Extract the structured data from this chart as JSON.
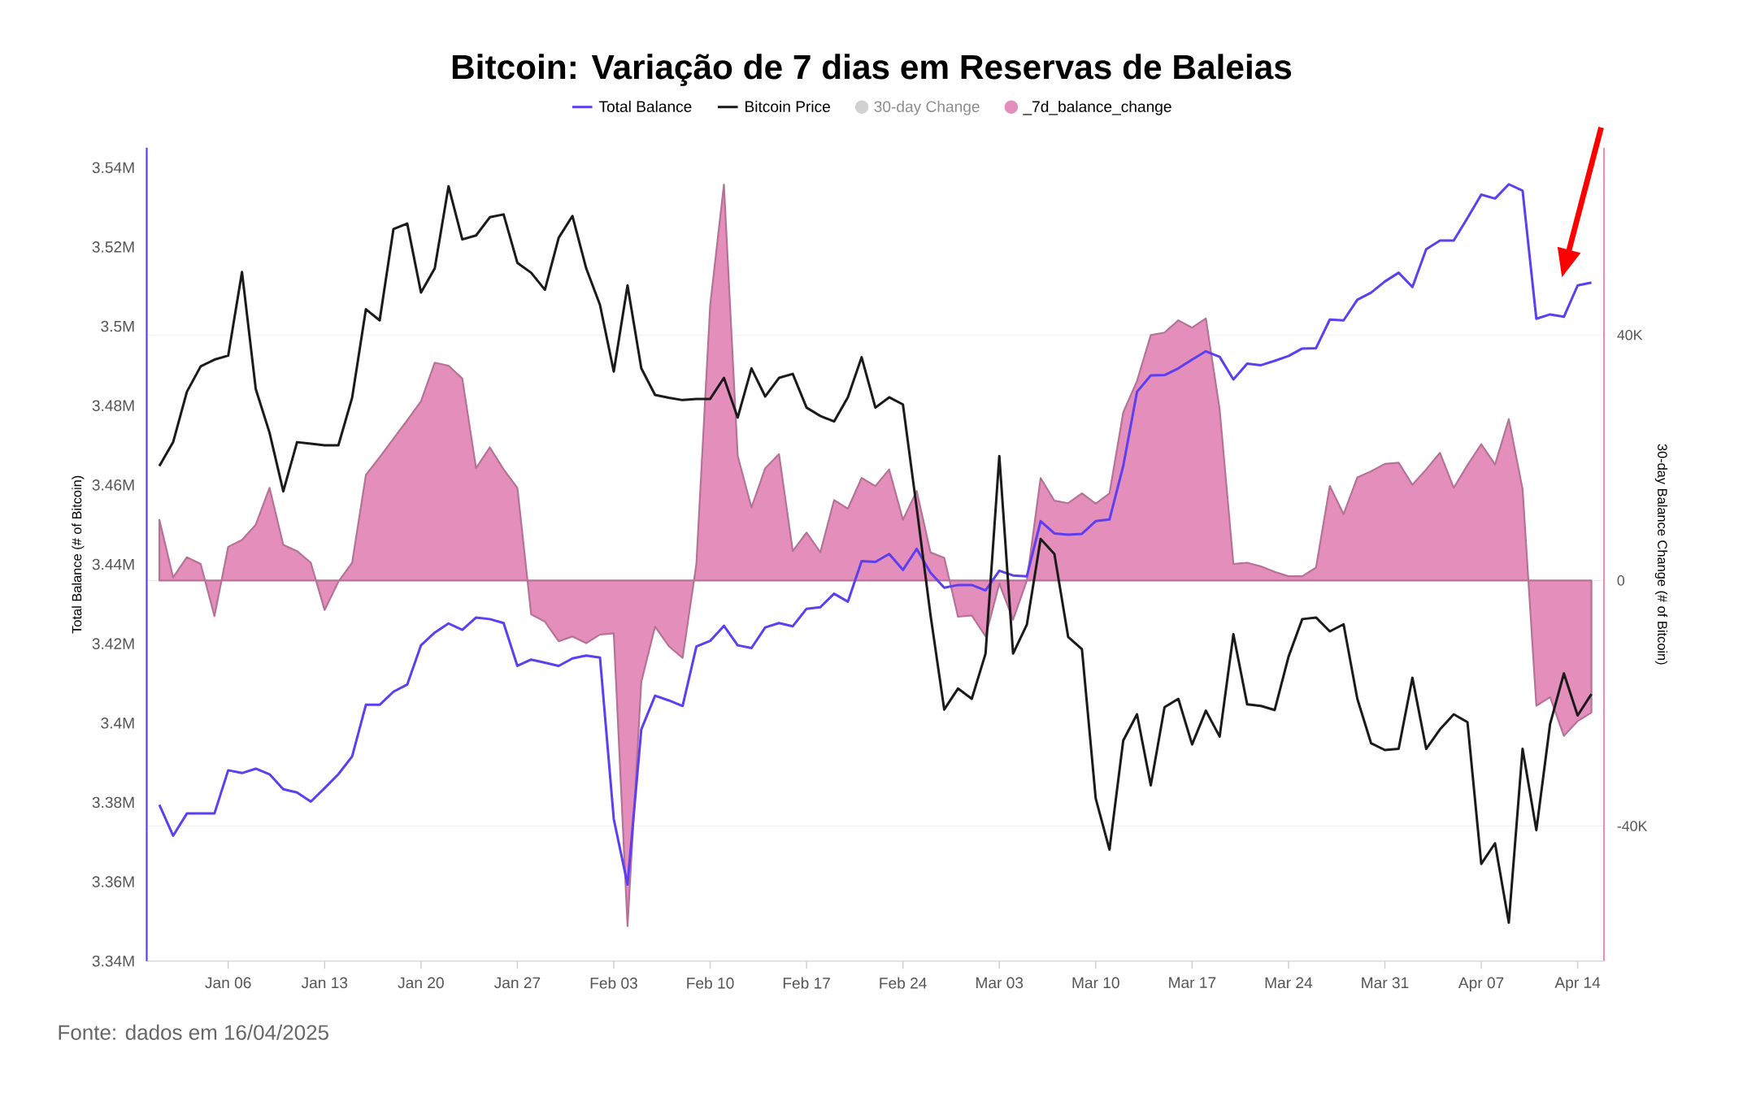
{
  "chart_data": {
    "type": "line",
    "title": "Bitcoin: Variação de 7 dias em Reservas de Baleias",
    "ylabel": "Total Balance (# of Bitcoin)",
    "y2label": "30-day Balance Change (# of Bitcoin)",
    "annotations": [
      "30-day Change",
      "Fonte: dados em 16/04/2025"
    ],
    "x": [
      "2025-01-01",
      "2025-01-02",
      "2025-01-03",
      "2025-01-04",
      "2025-01-05",
      "2025-01-06",
      "2025-01-07",
      "2025-01-08",
      "2025-01-09",
      "2025-01-10",
      "2025-01-11",
      "2025-01-12",
      "2025-01-13",
      "2025-01-14",
      "2025-01-15",
      "2025-01-16",
      "2025-01-17",
      "2025-01-18",
      "2025-01-19",
      "2025-01-20",
      "2025-01-21",
      "2025-01-22",
      "2025-01-23",
      "2025-01-24",
      "2025-01-25",
      "2025-01-26",
      "2025-01-27",
      "2025-01-28",
      "2025-01-29",
      "2025-01-30",
      "2025-01-31",
      "2025-02-01",
      "2025-02-02",
      "2025-02-03",
      "2025-02-04",
      "2025-02-05",
      "2025-02-06",
      "2025-02-07",
      "2025-02-08",
      "2025-02-09",
      "2025-02-10",
      "2025-02-11",
      "2025-02-12",
      "2025-02-13",
      "2025-02-14",
      "2025-02-15",
      "2025-02-16",
      "2025-02-17",
      "2025-02-18",
      "2025-02-19",
      "2025-02-20",
      "2025-02-21",
      "2025-02-22",
      "2025-02-23",
      "2025-02-24",
      "2025-02-25",
      "2025-02-26",
      "2025-02-27",
      "2025-02-28",
      "2025-03-01",
      "2025-03-02",
      "2025-03-03",
      "2025-03-04",
      "2025-03-05",
      "2025-03-06",
      "2025-03-07",
      "2025-03-08",
      "2025-03-09",
      "2025-03-10",
      "2025-03-11",
      "2025-03-12",
      "2025-03-13",
      "2025-03-14",
      "2025-03-15",
      "2025-03-16",
      "2025-03-17",
      "2025-03-18",
      "2025-03-19",
      "2025-03-20",
      "2025-03-21",
      "2025-03-22",
      "2025-03-23",
      "2025-03-24",
      "2025-03-25",
      "2025-03-26",
      "2025-03-27",
      "2025-03-28",
      "2025-03-29",
      "2025-03-30",
      "2025-03-31",
      "2025-04-01",
      "2025-04-02",
      "2025-04-03",
      "2025-04-04",
      "2025-04-05",
      "2025-04-06",
      "2025-04-07",
      "2025-04-08",
      "2025-04-09",
      "2025-04-10",
      "2025-04-11",
      "2025-04-12",
      "2025-04-13",
      "2025-04-14",
      "2025-04-15"
    ],
    "series": [
      {
        "name": "_7d_balance_change",
        "type": "area",
        "axis": "y2",
        "color": "#e48fbb",
        "values": [
          9900,
          500,
          3800,
          2700,
          -5800,
          5500,
          6600,
          9100,
          15100,
          5800,
          4800,
          2900,
          -4800,
          -200,
          2900,
          17200,
          20100,
          23100,
          26100,
          29200,
          35500,
          35000,
          32900,
          18300,
          21700,
          18100,
          15100,
          -5500,
          -6700,
          -9900,
          -9100,
          -10200,
          -8800,
          -8600,
          -56300,
          -16500,
          -7500,
          -10700,
          -12600,
          2700,
          44800,
          64500,
          20300,
          11900,
          18300,
          20600,
          4800,
          7800,
          4600,
          13100,
          11700,
          16700,
          15400,
          18100,
          9900,
          14600,
          4600,
          3700,
          -5900,
          -5700,
          -9100,
          -500,
          -6400,
          0,
          16700,
          13000,
          12600,
          14200,
          12500,
          14200,
          27400,
          32500,
          40000,
          40400,
          42400,
          41200,
          42700,
          27900,
          2700,
          2900,
          2300,
          1400,
          700,
          700,
          2100,
          15400,
          10800,
          16800,
          17800,
          19000,
          19200,
          15600,
          18100,
          20800,
          15100,
          18800,
          22200,
          18900,
          26300,
          14900,
          -20400,
          -19000,
          -25300,
          -22900,
          -21500
        ]
      },
      {
        "name": "Total Balance",
        "color": "#5b3ff0",
        "values": [
          3379400,
          3371600,
          3377200,
          3377200,
          3377200,
          3388100,
          3387400,
          3388500,
          3387100,
          3383300,
          3382500,
          3380200,
          3383600,
          3387100,
          3391600,
          3404600,
          3404600,
          3407900,
          3409700,
          3419600,
          3422800,
          3425100,
          3423500,
          3426600,
          3426200,
          3425200,
          3414400,
          3416000,
          3415200,
          3414400,
          3416300,
          3417000,
          3416500,
          3375800,
          3359300,
          3398400,
          3406900,
          3405700,
          3404300,
          3419300,
          3420700,
          3424500,
          3419600,
          3418900,
          3424100,
          3425200,
          3424400,
          3428800,
          3429200,
          3432600,
          3430600,
          3440800,
          3440600,
          3442600,
          3438600,
          3443900,
          3437900,
          3434100,
          3434800,
          3434800,
          3433400,
          3438400,
          3437200,
          3437000,
          3450900,
          3447800,
          3447500,
          3447700,
          3450900,
          3451300,
          3464800,
          3483500,
          3487600,
          3487700,
          3489400,
          3491600,
          3493700,
          3492300,
          3486600,
          3490600,
          3490200,
          3491300,
          3492500,
          3494400,
          3494500,
          3501700,
          3501500,
          3506700,
          3508500,
          3511300,
          3513500,
          3509900,
          3519400,
          3521600,
          3521600,
          3527300,
          3533200,
          3532200,
          3535800,
          3534200,
          3501900,
          3503000,
          3502400,
          3510300,
          3511000
        ]
      },
      {
        "name": "Bitcoin Price",
        "color": "#1a1a1a",
        "values": [
          3464800,
          3470800,
          3483500,
          3489900,
          3491600,
          3492600,
          3513700,
          3484200,
          3473200,
          3458400,
          3470800,
          3470400,
          3470000,
          3470000,
          3482000,
          3504300,
          3501500,
          3524500,
          3525900,
          3508500,
          3514600,
          3535300,
          3521900,
          3522900,
          3527500,
          3528200,
          3516000,
          3513500,
          3509200,
          3522300,
          3527800,
          3514600,
          3505400,
          3488600,
          3510300,
          3489400,
          3482700,
          3482000,
          3481400,
          3481700,
          3481700,
          3487000,
          3477000,
          3489400,
          3482300,
          3487000,
          3488000,
          3479500,
          3477400,
          3476000,
          3482100,
          3492200,
          3479500,
          3482100,
          3480300,
          3454200,
          3427300,
          3403400,
          3408700,
          3406100,
          3417500,
          3467300,
          3417500,
          3424800,
          3446400,
          3442600,
          3421700,
          3418600,
          3381000,
          3368100,
          3395600,
          3402200,
          3384300,
          3404000,
          3406100,
          3394600,
          3403100,
          3396600,
          3422400,
          3404700,
          3404300,
          3403300,
          3416700,
          3426200,
          3426600,
          3423100,
          3424900,
          3406100,
          3394900,
          3393200,
          3393500,
          3411400,
          3393500,
          3398400,
          3402200,
          3400200,
          3364500,
          3369700,
          3349700,
          3393500,
          3373000,
          3399800,
          3412500,
          3401900,
          3407300
        ]
      }
    ],
    "xlim": [
      "2024-12-31T02:00",
      "2025-04-15T22:00"
    ],
    "xticks": [
      {
        "value": "2025-01-06",
        "label": "Jan 06"
      },
      {
        "value": "2025-01-13",
        "label": "Jan 13"
      },
      {
        "value": "2025-01-20",
        "label": "Jan 20"
      },
      {
        "value": "2025-01-27",
        "label": "Jan 27"
      },
      {
        "value": "2025-02-03",
        "label": "Feb 03"
      },
      {
        "value": "2025-02-10",
        "label": "Feb 10"
      },
      {
        "value": "2025-02-17",
        "label": "Feb 17"
      },
      {
        "value": "2025-02-24",
        "label": "Feb 24"
      },
      {
        "value": "2025-03-03",
        "label": "Mar 03"
      },
      {
        "value": "2025-03-10",
        "label": "Mar 10"
      },
      {
        "value": "2025-03-17",
        "label": "Mar 17"
      },
      {
        "value": "2025-03-24",
        "label": "Mar 24"
      },
      {
        "value": "2025-03-31",
        "label": "Mar 31"
      },
      {
        "value": "2025-04-07",
        "label": "Apr 07"
      },
      {
        "value": "2025-04-14",
        "label": "Apr 14"
      }
    ],
    "ylim": [
      3340000,
      3545000
    ],
    "yticks": [
      {
        "value": 3340000,
        "label": "3.34M"
      },
      {
        "value": 3360000,
        "label": "3.36M"
      },
      {
        "value": 3380000,
        "label": "3.38M"
      },
      {
        "value": 3400000,
        "label": "3.4M"
      },
      {
        "value": 3420000,
        "label": "3.42M"
      },
      {
        "value": 3440000,
        "label": "3.44M"
      },
      {
        "value": 3460000,
        "label": "3.46M"
      },
      {
        "value": 3480000,
        "label": "3.48M"
      },
      {
        "value": 3500000,
        "label": "3.5M"
      },
      {
        "value": 3520000,
        "label": "3.52M"
      },
      {
        "value": 3540000,
        "label": "3.54M"
      }
    ],
    "y2lim": [
      -62000,
      70500
    ],
    "y2ticks": [
      {
        "value": -40000,
        "label": "-40K"
      },
      0,
      {
        "value": 40000,
        "label": "40K"
      }
    ],
    "grid": "y",
    "legend": "top"
  }
}
